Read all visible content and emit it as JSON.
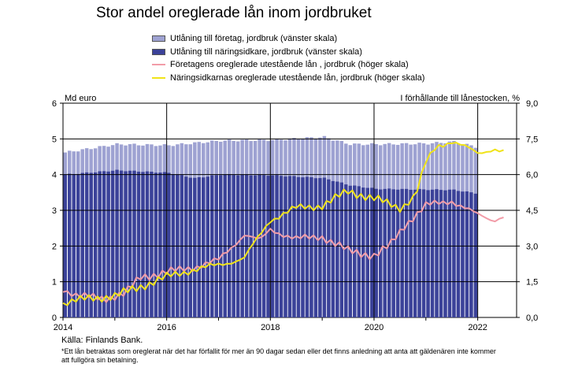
{
  "chart_data": {
    "type": "bar+line",
    "title": "Stor andel oreglerade lån inom jordbruket",
    "left_axis": {
      "title": "Md euro",
      "range": [
        0,
        6
      ],
      "ticks": [
        "0",
        "1",
        "2",
        "3",
        "4",
        "5",
        "6"
      ]
    },
    "right_axis": {
      "title": "I förhållande till lånestocken, %",
      "range": [
        0,
        9
      ],
      "ticks": [
        "0,0",
        "1,5",
        "3,0",
        "4,5",
        "6,0",
        "7,5",
        "9,0"
      ]
    },
    "x_labels": [
      "2014",
      "2016",
      "2018",
      "2020",
      "2022"
    ],
    "x_range": [
      2014.0,
      2022.75
    ],
    "grid": true,
    "legend_position": "top",
    "bars": {
      "start": "2014-01",
      "months": 96,
      "series": [
        {
          "name": "Utlåning till företag, jordbruk (vänster skala)",
          "color": "#9ea2d2",
          "total_points": [
            [
              0,
              4.62
            ],
            [
              12,
              4.85
            ],
            [
              24,
              4.82
            ],
            [
              36,
              4.95
            ],
            [
              48,
              4.97
            ],
            [
              60,
              5.05
            ],
            [
              66,
              4.85
            ],
            [
              72,
              4.85
            ],
            [
              84,
              4.87
            ],
            [
              90,
              4.92
            ],
            [
              95,
              4.78
            ]
          ]
        },
        {
          "name": "Utlåning till näringsidkare, jordbruk (vänster skala)",
          "color": "#3b4299",
          "points": [
            [
              0,
              4.0
            ],
            [
              12,
              4.12
            ],
            [
              24,
              4.05
            ],
            [
              30,
              3.9
            ],
            [
              36,
              4.0
            ],
            [
              48,
              3.98
            ],
            [
              60,
              3.9
            ],
            [
              66,
              3.7
            ],
            [
              72,
              3.6
            ],
            [
              84,
              3.58
            ],
            [
              90,
              3.57
            ],
            [
              95,
              3.48
            ]
          ]
        }
      ]
    },
    "lines": [
      {
        "name": "Företagens oreglerade utestående lån , jordbruk (höger skala)",
        "color": "#f29ca8",
        "points": [
          [
            2014.0,
            1.2
          ],
          [
            2014.3,
            0.9
          ],
          [
            2014.8,
            0.8
          ],
          [
            2015.2,
            1.0
          ],
          [
            2015.5,
            1.7
          ],
          [
            2016.0,
            1.9
          ],
          [
            2016.5,
            2.1
          ],
          [
            2017.0,
            2.4
          ],
          [
            2017.5,
            3.5
          ],
          [
            2017.8,
            3.2
          ],
          [
            2018.0,
            3.7
          ],
          [
            2018.5,
            3.3
          ],
          [
            2019.0,
            3.4
          ],
          [
            2019.5,
            2.8
          ],
          [
            2020.0,
            2.6
          ],
          [
            2020.3,
            3.0
          ],
          [
            2020.6,
            3.9
          ],
          [
            2021.0,
            4.7
          ],
          [
            2021.5,
            4.9
          ],
          [
            2022.0,
            4.3
          ],
          [
            2022.3,
            4.1
          ],
          [
            2022.55,
            4.3
          ]
        ]
      },
      {
        "name": "Näringsidkarnas oreglerade utestående lån, jordbruk (höger skala)",
        "color": "#f0e319",
        "points": [
          [
            2014.0,
            0.6
          ],
          [
            2014.5,
            0.8
          ],
          [
            2015.0,
            0.9
          ],
          [
            2015.5,
            1.3
          ],
          [
            2016.0,
            1.7
          ],
          [
            2016.5,
            2.0
          ],
          [
            2017.0,
            2.2
          ],
          [
            2017.5,
            2.5
          ],
          [
            2018.0,
            4.1
          ],
          [
            2018.5,
            4.6
          ],
          [
            2019.0,
            4.7
          ],
          [
            2019.5,
            5.3
          ],
          [
            2020.0,
            5.0
          ],
          [
            2020.5,
            4.6
          ],
          [
            2020.8,
            5.1
          ],
          [
            2021.0,
            6.5
          ],
          [
            2021.2,
            7.2
          ],
          [
            2021.5,
            7.4
          ],
          [
            2022.0,
            6.9
          ],
          [
            2022.3,
            7.1
          ],
          [
            2022.55,
            6.9
          ]
        ]
      }
    ]
  },
  "source": "Källa: Finlands Bank.",
  "footnote": "*Ett lån betraktas som oreglerat när det har förfallit för mer än 90 dagar sedan eller det finns anledning att anta att gäldenären inte kommer att fullgöra sin betalning."
}
